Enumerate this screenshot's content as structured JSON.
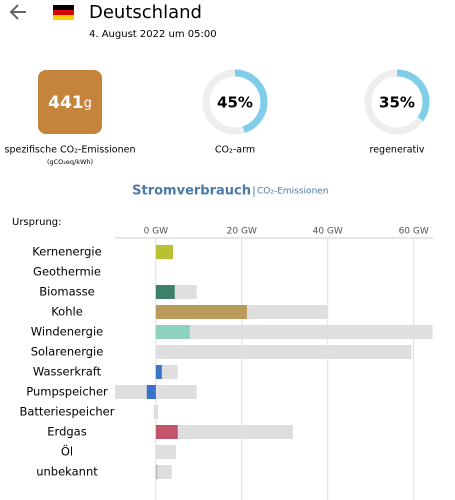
{
  "header": {
    "title": "Deutschland",
    "date": "4. August 2022 um 05:00"
  },
  "intensity": {
    "value": 441,
    "unit": "g",
    "label": "spezifische CO₂-Emissionen",
    "sublabel": "(gCO₂eq/kWh)",
    "color": "#c4843b"
  },
  "rings": [
    {
      "value": 45,
      "value_label": "45%",
      "label": "CO₂-arm"
    },
    {
      "value": 35,
      "value_label": "35%",
      "label": "regenerativ"
    }
  ],
  "ring_color": "#80cde9",
  "tabs": {
    "active": "Stromverbrauch",
    "separator": "|",
    "other": "CO₂-Emissionen"
  },
  "chart_data": {
    "type": "bar",
    "orientation": "horizontal",
    "axis_title": "Ursprung:",
    "categories": [
      "Kernenergie",
      "Geothermie",
      "Biomasse",
      "Kohle",
      "Windenergie",
      "Solarenergie",
      "Wasserkraft",
      "Pumpspeicher",
      "Batteriespeicher",
      "Erdgas",
      "Öl",
      "unbekannt"
    ],
    "production": [
      4.0,
      0,
      4.4,
      21.2,
      7.9,
      0,
      1.4,
      -2.1,
      0,
      5.1,
      0,
      0.3
    ],
    "capacity": [
      4.0,
      0,
      9.5,
      40,
      64.4,
      59.5,
      5.1,
      9.5,
      0.5,
      31.9,
      4.7,
      3.7
    ],
    "capacity_negative": [
      null,
      null,
      null,
      null,
      null,
      null,
      null,
      -9.5,
      -0.5,
      null,
      null,
      null
    ],
    "colors": [
      "#b9c132",
      "#999999",
      "#3e7f6c",
      "#b99b5a",
      "#8dd1c1",
      "#f0c84a",
      "#3b78c4",
      "#3b6fcc",
      "#aaaaaa",
      "#c1536a",
      "#8a6d5a",
      "#b0b0b0"
    ],
    "capacity_color": "#dedede",
    "xlim": [
      -9.5,
      64.5
    ],
    "xticks": [
      {
        "value": 0,
        "label": "0 GW"
      },
      {
        "value": 20,
        "label": "20 GW"
      },
      {
        "value": 40,
        "label": "40 GW"
      },
      {
        "value": 60,
        "label": "60 GW"
      }
    ],
    "grid": true
  }
}
